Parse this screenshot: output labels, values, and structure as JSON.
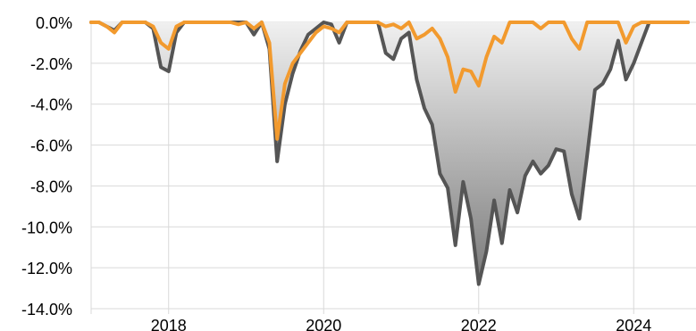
{
  "chart_data": {
    "type": "area",
    "title": "",
    "xlabel": "",
    "ylabel": "",
    "x_ticks": [
      "2018",
      "2020",
      "2022",
      "2024"
    ],
    "x_range": [
      2017.0,
      2024.7
    ],
    "y_ticks": [
      "0.0%",
      "-2.0%",
      "-4.0%",
      "-6.0%",
      "-8.0%",
      "-10.0%",
      "-12.0%",
      "-14.0%"
    ],
    "ylim": [
      -14,
      0
    ],
    "grid": true,
    "legend": "none",
    "series": [
      {
        "color": "#555555",
        "fill": "gradient-gray",
        "points": [
          [
            2017.0,
            0
          ],
          [
            2017.1,
            0
          ],
          [
            2017.2,
            -0.2
          ],
          [
            2017.3,
            -0.4
          ],
          [
            2017.4,
            0
          ],
          [
            2017.5,
            0
          ],
          [
            2017.6,
            0
          ],
          [
            2017.7,
            0
          ],
          [
            2017.8,
            -0.3
          ],
          [
            2017.9,
            -2.2
          ],
          [
            2018.0,
            -2.4
          ],
          [
            2018.1,
            -0.5
          ],
          [
            2018.2,
            0
          ],
          [
            2018.3,
            0
          ],
          [
            2018.5,
            0
          ],
          [
            2018.8,
            0
          ],
          [
            2019.0,
            0
          ],
          [
            2019.1,
            -0.6
          ],
          [
            2019.2,
            0
          ],
          [
            2019.3,
            -1.3
          ],
          [
            2019.4,
            -6.8
          ],
          [
            2019.5,
            -4.0
          ],
          [
            2019.6,
            -2.5
          ],
          [
            2019.7,
            -1.4
          ],
          [
            2019.8,
            -0.6
          ],
          [
            2019.9,
            -0.3
          ],
          [
            2020.0,
            0
          ],
          [
            2020.1,
            -0.1
          ],
          [
            2020.2,
            -1.0
          ],
          [
            2020.3,
            0
          ],
          [
            2020.5,
            0
          ],
          [
            2020.6,
            0
          ],
          [
            2020.7,
            0
          ],
          [
            2020.8,
            -1.5
          ],
          [
            2020.9,
            -1.8
          ],
          [
            2021.0,
            -0.8
          ],
          [
            2021.1,
            -0.5
          ],
          [
            2021.2,
            -2.8
          ],
          [
            2021.3,
            -4.2
          ],
          [
            2021.4,
            -5.0
          ],
          [
            2021.5,
            -7.4
          ],
          [
            2021.6,
            -8.1
          ],
          [
            2021.7,
            -10.9
          ],
          [
            2021.8,
            -7.8
          ],
          [
            2021.9,
            -9.6
          ],
          [
            2022.0,
            -12.8
          ],
          [
            2022.1,
            -11.2
          ],
          [
            2022.2,
            -8.7
          ],
          [
            2022.3,
            -10.8
          ],
          [
            2022.4,
            -8.2
          ],
          [
            2022.5,
            -9.3
          ],
          [
            2022.6,
            -7.5
          ],
          [
            2022.7,
            -6.8
          ],
          [
            2022.8,
            -7.4
          ],
          [
            2022.9,
            -7.0
          ],
          [
            2023.0,
            -6.2
          ],
          [
            2023.1,
            -6.3
          ],
          [
            2023.2,
            -8.4
          ],
          [
            2023.3,
            -9.6
          ],
          [
            2023.4,
            -6.5
          ],
          [
            2023.5,
            -3.3
          ],
          [
            2023.6,
            -3.0
          ],
          [
            2023.7,
            -2.3
          ],
          [
            2023.8,
            -0.9
          ],
          [
            2023.9,
            -2.8
          ],
          [
            2024.0,
            -2.0
          ],
          [
            2024.1,
            -1.0
          ],
          [
            2024.2,
            0
          ],
          [
            2024.3,
            0
          ],
          [
            2024.4,
            0
          ],
          [
            2024.5,
            0
          ],
          [
            2024.7,
            0
          ]
        ]
      },
      {
        "color": "#f29a2e",
        "fill": "none",
        "points": [
          [
            2017.0,
            0
          ],
          [
            2017.1,
            0
          ],
          [
            2017.2,
            -0.2
          ],
          [
            2017.3,
            -0.5
          ],
          [
            2017.4,
            0
          ],
          [
            2017.5,
            0
          ],
          [
            2017.6,
            0
          ],
          [
            2017.7,
            0
          ],
          [
            2017.8,
            -0.2
          ],
          [
            2017.9,
            -1.0
          ],
          [
            2018.0,
            -1.3
          ],
          [
            2018.1,
            -0.2
          ],
          [
            2018.2,
            0
          ],
          [
            2018.5,
            0
          ],
          [
            2018.8,
            0
          ],
          [
            2018.9,
            -0.1
          ],
          [
            2019.0,
            0
          ],
          [
            2019.1,
            -0.3
          ],
          [
            2019.2,
            0
          ],
          [
            2019.3,
            -1.0
          ],
          [
            2019.4,
            -5.7
          ],
          [
            2019.5,
            -3.0
          ],
          [
            2019.6,
            -2.0
          ],
          [
            2019.7,
            -1.5
          ],
          [
            2019.8,
            -1.0
          ],
          [
            2019.9,
            -0.5
          ],
          [
            2020.0,
            -0.2
          ],
          [
            2020.1,
            -0.3
          ],
          [
            2020.2,
            -0.5
          ],
          [
            2020.3,
            0
          ],
          [
            2020.5,
            0
          ],
          [
            2020.6,
            0
          ],
          [
            2020.7,
            0
          ],
          [
            2020.8,
            -0.2
          ],
          [
            2020.9,
            -0.1
          ],
          [
            2021.0,
            -0.3
          ],
          [
            2021.1,
            0
          ],
          [
            2021.2,
            -0.8
          ],
          [
            2021.3,
            -0.6
          ],
          [
            2021.4,
            -0.3
          ],
          [
            2021.5,
            -0.8
          ],
          [
            2021.6,
            -1.7
          ],
          [
            2021.7,
            -3.4
          ],
          [
            2021.8,
            -2.3
          ],
          [
            2021.9,
            -2.4
          ],
          [
            2022.0,
            -3.1
          ],
          [
            2022.1,
            -1.7
          ],
          [
            2022.2,
            -0.7
          ],
          [
            2022.3,
            -1.0
          ],
          [
            2022.4,
            0
          ],
          [
            2022.5,
            0
          ],
          [
            2022.6,
            0
          ],
          [
            2022.7,
            0
          ],
          [
            2022.8,
            -0.3
          ],
          [
            2022.9,
            0
          ],
          [
            2023.0,
            0
          ],
          [
            2023.1,
            0
          ],
          [
            2023.2,
            -0.8
          ],
          [
            2023.3,
            -1.3
          ],
          [
            2023.4,
            0
          ],
          [
            2023.5,
            0
          ],
          [
            2023.6,
            0
          ],
          [
            2023.7,
            0
          ],
          [
            2023.8,
            0
          ],
          [
            2023.9,
            -1.0
          ],
          [
            2024.0,
            -0.2
          ],
          [
            2024.1,
            0
          ],
          [
            2024.3,
            0
          ],
          [
            2024.7,
            0
          ]
        ]
      }
    ]
  }
}
